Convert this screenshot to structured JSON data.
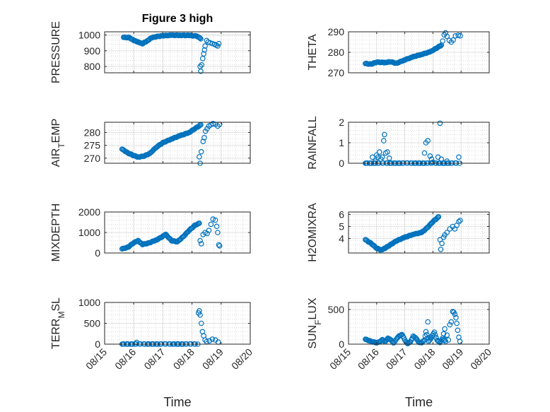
{
  "title": "Figure 3 high",
  "marker_color": "#0072BD",
  "chart_data": [
    {
      "type": "scatter",
      "title": "Figure 3 high",
      "ylabel_parts": [
        "PRESSURE"
      ],
      "xlim": [
        0,
        5
      ],
      "ylim": [
        760,
        1020
      ],
      "yticks": [
        800,
        900,
        1000
      ],
      "ytick_labels": [
        "800",
        "900",
        "1000"
      ],
      "xticks": [
        0,
        1,
        2,
        3,
        4,
        5
      ],
      "xtick_labels": [
        "08/15",
        "08/16",
        "08/17",
        "08/18",
        "08/19",
        "08/20"
      ],
      "anchors": [
        [
          0.65,
          985
        ],
        [
          0.85,
          983
        ],
        [
          1.0,
          965
        ],
        [
          1.15,
          955
        ],
        [
          1.3,
          945
        ],
        [
          1.45,
          960
        ],
        [
          1.6,
          982
        ],
        [
          1.8,
          990
        ],
        [
          2.0,
          995
        ],
        [
          2.3,
          998
        ],
        [
          2.6,
          998
        ],
        [
          2.9,
          997
        ],
        [
          3.15,
          993
        ],
        [
          3.25,
          985
        ],
        [
          3.3,
          975
        ]
      ],
      "extra": [
        [
          3.28,
          800
        ],
        [
          3.3,
          770
        ],
        [
          3.33,
          810
        ],
        [
          3.37,
          850
        ],
        [
          3.4,
          880
        ],
        [
          3.43,
          905
        ],
        [
          3.45,
          930
        ],
        [
          3.5,
          965
        ],
        [
          3.55,
          955
        ],
        [
          3.62,
          950
        ],
        [
          3.7,
          945
        ],
        [
          3.78,
          940
        ],
        [
          3.83,
          935
        ],
        [
          3.88,
          930
        ],
        [
          3.92,
          945
        ]
      ]
    },
    {
      "type": "scatter",
      "title": "",
      "ylabel_parts": [
        "THETA"
      ],
      "xlim": [
        0,
        5
      ],
      "ylim": [
        270,
        290
      ],
      "yticks": [
        270,
        280,
        290
      ],
      "ytick_labels": [
        "270",
        "280",
        "290"
      ],
      "xticks": [
        0,
        1,
        2,
        3,
        4,
        5
      ],
      "xtick_labels": [
        "08/15",
        "08/16",
        "08/17",
        "08/18",
        "08/19",
        "08/20"
      ],
      "anchors": [
        [
          0.6,
          274.5
        ],
        [
          0.8,
          274.2
        ],
        [
          1.0,
          275.2
        ],
        [
          1.3,
          275.0
        ],
        [
          1.5,
          275.4
        ],
        [
          1.7,
          274.6
        ],
        [
          2.0,
          276.3
        ],
        [
          2.3,
          277.8
        ],
        [
          2.6,
          279.0
        ],
        [
          2.9,
          280.2
        ],
        [
          3.1,
          281.8
        ],
        [
          3.3,
          283.5
        ]
      ],
      "extra": [
        [
          3.35,
          285.5
        ],
        [
          3.4,
          288.5
        ],
        [
          3.45,
          289.5
        ],
        [
          3.5,
          287.8
        ],
        [
          3.58,
          285.8
        ],
        [
          3.65,
          285.0
        ],
        [
          3.72,
          286.0
        ],
        [
          3.8,
          288.0
        ],
        [
          3.9,
          288.3
        ],
        [
          3.97,
          288.0
        ]
      ]
    },
    {
      "type": "scatter",
      "title": "",
      "ylabel_parts": [
        "AIR",
        "T",
        "EMP"
      ],
      "xlim": [
        0,
        5
      ],
      "ylim": [
        268,
        284
      ],
      "yticks": [
        270,
        275,
        280
      ],
      "ytick_labels": [
        "270",
        "275",
        "280"
      ],
      "xticks": [
        0,
        1,
        2,
        3,
        4,
        5
      ],
      "xtick_labels": [
        "08/15",
        "08/16",
        "08/17",
        "08/18",
        "08/19",
        "08/20"
      ],
      "anchors": [
        [
          0.6,
          273.5
        ],
        [
          0.8,
          272.0
        ],
        [
          1.0,
          271.0
        ],
        [
          1.15,
          270.4
        ],
        [
          1.35,
          270.8
        ],
        [
          1.55,
          271.8
        ],
        [
          1.8,
          274.5
        ],
        [
          2.0,
          276.0
        ],
        [
          2.3,
          277.5
        ],
        [
          2.6,
          278.8
        ],
        [
          2.9,
          280.0
        ],
        [
          3.1,
          281.5
        ],
        [
          3.3,
          283.0
        ]
      ],
      "extra": [
        [
          3.25,
          270.5
        ],
        [
          3.28,
          268.0
        ],
        [
          3.32,
          272.5
        ],
        [
          3.38,
          276.5
        ],
        [
          3.42,
          278.0
        ],
        [
          3.46,
          280.5
        ],
        [
          3.52,
          281.5
        ],
        [
          3.58,
          282.5
        ],
        [
          3.65,
          283.0
        ],
        [
          3.72,
          283.5
        ],
        [
          3.8,
          283.2
        ],
        [
          3.88,
          282.5
        ],
        [
          3.95,
          283.2
        ]
      ]
    },
    {
      "type": "scatter",
      "title": "",
      "ylabel_parts": [
        "RAINFALL"
      ],
      "xlim": [
        0,
        5
      ],
      "ylim": [
        0,
        2
      ],
      "yticks": [
        0,
        1,
        2
      ],
      "ytick_labels": [
        "0",
        "1",
        "2"
      ],
      "xticks": [
        0,
        1,
        2,
        3,
        4,
        5
      ],
      "xtick_labels": [
        "08/15",
        "08/16",
        "08/17",
        "08/18",
        "08/19",
        "08/20"
      ],
      "anchors": [
        [
          0.6,
          0
        ],
        [
          3.95,
          0
        ]
      ],
      "extra": [
        [
          0.85,
          0.3
        ],
        [
          0.95,
          0.1
        ],
        [
          1.0,
          0.4
        ],
        [
          1.05,
          0.3
        ],
        [
          1.1,
          0.55
        ],
        [
          1.15,
          0.2
        ],
        [
          1.2,
          0.3
        ],
        [
          1.25,
          1.1
        ],
        [
          1.28,
          1.4
        ],
        [
          1.32,
          0.5
        ],
        [
          1.38,
          0.55
        ],
        [
          1.45,
          0.25
        ],
        [
          2.7,
          0.5
        ],
        [
          2.75,
          1.0
        ],
        [
          2.82,
          1.1
        ],
        [
          2.9,
          0.35
        ],
        [
          2.95,
          0.2
        ],
        [
          3.0,
          0.05
        ],
        [
          3.18,
          0.3
        ],
        [
          3.25,
          1.95
        ],
        [
          3.3,
          0.2
        ],
        [
          3.5,
          0.1
        ],
        [
          3.92,
          0.3
        ]
      ]
    },
    {
      "type": "scatter",
      "title": "",
      "ylabel_parts": [
        "MIXDEPTH"
      ],
      "xlim": [
        0,
        5
      ],
      "ylim": [
        0,
        2000
      ],
      "yticks": [
        0,
        1000,
        2000
      ],
      "ytick_labels": [
        "0",
        "1000",
        "2000"
      ],
      "xticks": [
        0,
        1,
        2,
        3,
        4,
        5
      ],
      "xtick_labels": [
        "08/15",
        "08/16",
        "08/17",
        "08/18",
        "08/19",
        "08/20"
      ],
      "anchors": [
        [
          0.6,
          200
        ],
        [
          0.8,
          280
        ],
        [
          1.0,
          500
        ],
        [
          1.15,
          600
        ],
        [
          1.3,
          420
        ],
        [
          1.5,
          480
        ],
        [
          1.8,
          650
        ],
        [
          2.1,
          900
        ],
        [
          2.3,
          600
        ],
        [
          2.5,
          550
        ],
        [
          2.7,
          800
        ],
        [
          2.9,
          1100
        ],
        [
          3.1,
          1350
        ],
        [
          3.25,
          1450
        ]
      ],
      "extra": [
        [
          3.28,
          600
        ],
        [
          3.32,
          450
        ],
        [
          3.38,
          900
        ],
        [
          3.45,
          1000
        ],
        [
          3.52,
          950
        ],
        [
          3.58,
          1100
        ],
        [
          3.65,
          1400
        ],
        [
          3.72,
          1650
        ],
        [
          3.8,
          1600
        ],
        [
          3.85,
          1300
        ],
        [
          3.88,
          1000
        ],
        [
          3.92,
          400
        ],
        [
          3.95,
          350
        ]
      ]
    },
    {
      "type": "scatter",
      "title": "",
      "ylabel_parts": [
        "H2OMIXRA"
      ],
      "xlim": [
        0,
        5
      ],
      "ylim": [
        2.8,
        6.2
      ],
      "yticks": [
        4,
        5,
        6
      ],
      "ytick_labels": [
        "4",
        "5",
        "6"
      ],
      "xticks": [
        0,
        1,
        2,
        3,
        4,
        5
      ],
      "xtick_labels": [
        "08/15",
        "08/16",
        "08/17",
        "08/18",
        "08/19",
        "08/20"
      ],
      "anchors": [
        [
          0.6,
          3.9
        ],
        [
          0.8,
          3.6
        ],
        [
          1.0,
          3.2
        ],
        [
          1.15,
          3.05
        ],
        [
          1.3,
          3.2
        ],
        [
          1.5,
          3.5
        ],
        [
          1.7,
          3.8
        ],
        [
          2.0,
          4.1
        ],
        [
          2.3,
          4.35
        ],
        [
          2.6,
          4.5
        ],
        [
          2.8,
          4.9
        ],
        [
          3.0,
          5.4
        ],
        [
          3.2,
          5.8
        ]
      ],
      "extra": [
        [
          3.25,
          3.9
        ],
        [
          3.28,
          3.1
        ],
        [
          3.32,
          3.6
        ],
        [
          3.38,
          4.1
        ],
        [
          3.42,
          4.3
        ],
        [
          3.5,
          4.5
        ],
        [
          3.6,
          4.8
        ],
        [
          3.7,
          5.0
        ],
        [
          3.78,
          4.8
        ],
        [
          3.85,
          5.1
        ],
        [
          3.92,
          5.4
        ],
        [
          3.97,
          5.5
        ]
      ]
    },
    {
      "type": "scatter",
      "title": "",
      "ylabel_parts": [
        "TERR",
        "M",
        "SL"
      ],
      "xlim": [
        0,
        5
      ],
      "ylim": [
        0,
        1000
      ],
      "yticks": [
        0,
        500,
        1000
      ],
      "ytick_labels": [
        "0",
        "500",
        "1000"
      ],
      "xticks": [
        0,
        1,
        2,
        3,
        4,
        5
      ],
      "xtick_labels": [
        "08/15",
        "08/16",
        "08/17",
        "08/18",
        "08/19",
        "08/20"
      ],
      "anchors": [
        [
          0.6,
          0
        ],
        [
          3.2,
          0
        ]
      ],
      "extra": [
        [
          1.1,
          40
        ],
        [
          3.22,
          750
        ],
        [
          3.25,
          800
        ],
        [
          3.28,
          700
        ],
        [
          3.32,
          500
        ],
        [
          3.36,
          300
        ],
        [
          3.4,
          200
        ],
        [
          3.45,
          100
        ],
        [
          3.5,
          60
        ],
        [
          3.6,
          80
        ],
        [
          3.7,
          120
        ],
        [
          3.8,
          100
        ],
        [
          3.9,
          50
        ]
      ]
    },
    {
      "type": "scatter",
      "title": "",
      "ylabel_parts": [
        "SUN",
        "F",
        "LUX"
      ],
      "xlim": [
        0,
        5
      ],
      "ylim": [
        0,
        600
      ],
      "yticks": [
        0,
        500
      ],
      "ytick_labels": [
        "0",
        "500"
      ],
      "xticks": [
        0,
        1,
        2,
        3,
        4,
        5
      ],
      "xtick_labels": [
        "08/15",
        "08/16",
        "08/17",
        "08/18",
        "08/19",
        "08/20"
      ],
      "anchors": [
        [
          0.6,
          70
        ],
        [
          0.8,
          40
        ],
        [
          1.0,
          20
        ],
        [
          1.1,
          30
        ],
        [
          1.2,
          70
        ],
        [
          1.3,
          30
        ],
        [
          1.4,
          90
        ],
        [
          1.5,
          60
        ],
        [
          1.6,
          20
        ],
        [
          1.7,
          70
        ],
        [
          1.8,
          120
        ],
        [
          1.9,
          140
        ],
        [
          2.0,
          60
        ],
        [
          2.1,
          10
        ],
        [
          2.2,
          30
        ],
        [
          2.3,
          120
        ],
        [
          2.4,
          80
        ],
        [
          2.5,
          30
        ],
        [
          2.6,
          20
        ],
        [
          2.7,
          60
        ],
        [
          2.75,
          180
        ],
        [
          2.85,
          40
        ],
        [
          2.95,
          100
        ],
        [
          3.05,
          170
        ],
        [
          3.15,
          60
        ],
        [
          3.25,
          20
        ],
        [
          3.35,
          90
        ],
        [
          3.45,
          40
        ]
      ],
      "extra": [
        [
          2.82,
          320
        ],
        [
          2.9,
          100
        ],
        [
          3.38,
          150
        ],
        [
          3.42,
          220
        ],
        [
          3.5,
          130
        ],
        [
          3.55,
          60
        ],
        [
          3.6,
          280
        ],
        [
          3.65,
          320
        ],
        [
          3.7,
          470
        ],
        [
          3.74,
          460
        ],
        [
          3.78,
          430
        ],
        [
          3.82,
          380
        ],
        [
          3.85,
          300
        ],
        [
          3.88,
          200
        ],
        [
          3.92,
          100
        ],
        [
          3.96,
          40
        ]
      ]
    }
  ],
  "xlabel": "Time"
}
